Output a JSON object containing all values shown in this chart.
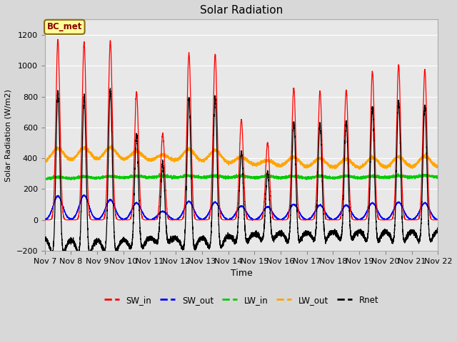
{
  "title": "Solar Radiation",
  "ylabel": "Solar Radiation (W/m2)",
  "xlabel": "Time",
  "ylim": [
    -200,
    1300
  ],
  "yticks": [
    -200,
    0,
    200,
    400,
    600,
    800,
    1000,
    1200
  ],
  "xtick_labels": [
    "Nov 7",
    "Nov 8",
    "Nov 9",
    "Nov 10",
    "Nov 11",
    "Nov 12",
    "Nov 13",
    "Nov 14",
    "Nov 15",
    "Nov 16",
    "Nov 17",
    "Nov 18",
    "Nov 19",
    "Nov 20",
    "Nov 21",
    "Nov 22"
  ],
  "colors": {
    "SW_in": "#FF0000",
    "SW_out": "#0000FF",
    "LW_in": "#00CC00",
    "LW_out": "#FFA500",
    "Rnet": "#000000"
  },
  "annotation_text": "BC_met",
  "annotation_box_color": "#FFFF99",
  "annotation_box_edge": "#8B6914",
  "fig_bg": "#D8D8D8",
  "plot_bg": "#E8E8E8",
  "sw_in_peaks": [
    1170,
    1150,
    1160,
    830,
    560,
    1080,
    1075,
    650,
    500,
    855,
    835,
    840,
    960,
    1005,
    975
  ],
  "sw_out_peaks": [
    155,
    160,
    130,
    110,
    55,
    120,
    115,
    90,
    85,
    100,
    95,
    95,
    110,
    115,
    110
  ],
  "lw_in_base": 265,
  "lw_out_base": 340,
  "night_rnet": -85
}
